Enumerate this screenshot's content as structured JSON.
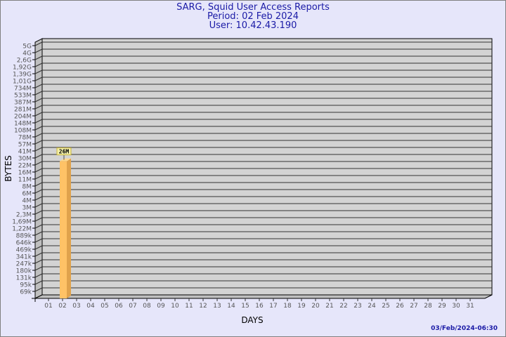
{
  "chart_data": {
    "type": "bar",
    "title": "SARG, Squid User Access Reports",
    "subtitle_period": "Period: 02 Feb 2024",
    "subtitle_user": "User: 10.42.43.190",
    "xlabel": "DAYS",
    "ylabel": "BYTES",
    "categories": [
      "01",
      "02",
      "03",
      "04",
      "05",
      "06",
      "07",
      "08",
      "09",
      "10",
      "11",
      "12",
      "13",
      "14",
      "15",
      "16",
      "17",
      "18",
      "19",
      "20",
      "21",
      "22",
      "23",
      "24",
      "25",
      "26",
      "27",
      "28",
      "29",
      "30",
      "31"
    ],
    "y_tick_labels": [
      "69k",
      "95k",
      "131k",
      "180k",
      "247k",
      "341k",
      "469k",
      "646k",
      "889k",
      "1,22M",
      "1,69M",
      "2,3M",
      "3M",
      "4M",
      "6M",
      "8M",
      "11M",
      "16M",
      "22M",
      "30M",
      "41M",
      "57M",
      "78M",
      "108M",
      "148M",
      "204M",
      "281M",
      "387M",
      "533M",
      "734M",
      "1,01G",
      "1,39G",
      "1,92G",
      "2,6G",
      "4G",
      "5G"
    ],
    "y_scale": "log",
    "series": [
      {
        "values": [
          null,
          26000000,
          null,
          null,
          null,
          null,
          null,
          null,
          null,
          null,
          null,
          null,
          null,
          null,
          null,
          null,
          null,
          null,
          null,
          null,
          null,
          null,
          null,
          null,
          null,
          null,
          null,
          null,
          null,
          null,
          null
        ],
        "data_labels": {
          "02": "26M"
        }
      }
    ],
    "grid": true,
    "bar_color": "#ffc266",
    "timestamp": "03/Feb/2024-06:30"
  }
}
